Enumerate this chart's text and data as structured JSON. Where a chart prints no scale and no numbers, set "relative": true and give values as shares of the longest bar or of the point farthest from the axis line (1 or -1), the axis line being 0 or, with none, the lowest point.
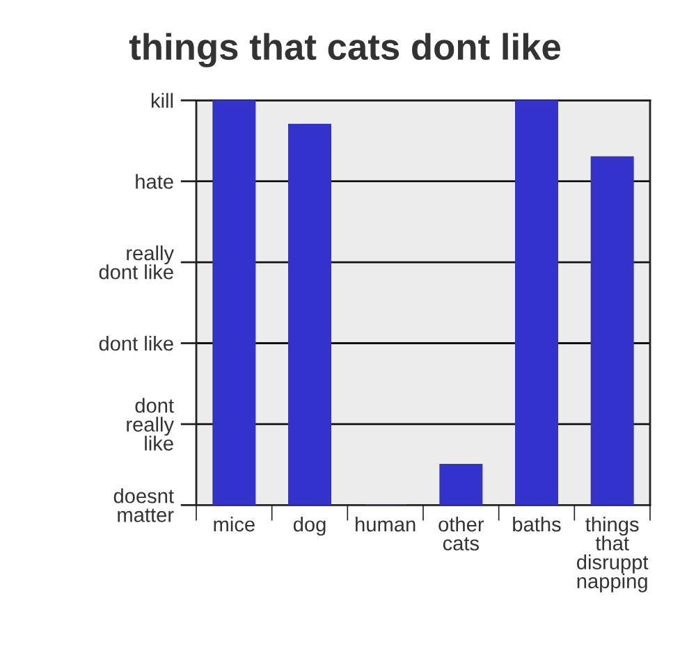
{
  "chart_data": {
    "type": "bar",
    "title": "things that cats dont like",
    "categories": [
      "mice",
      "dog",
      "human",
      "other\ncats",
      "baths",
      "things\nthat\ndisruppt\nnapping"
    ],
    "values": [
      1,
      0.94,
      0,
      0.1,
      1,
      0.86
    ],
    "color": "#3333cc",
    "relative": true,
    "y_categories": [
      "kill",
      "hate",
      "really\ndont like",
      "dont like",
      "dont\nreally\nlike",
      "doesnt\nmatter"
    ],
    "grid": "y"
  }
}
